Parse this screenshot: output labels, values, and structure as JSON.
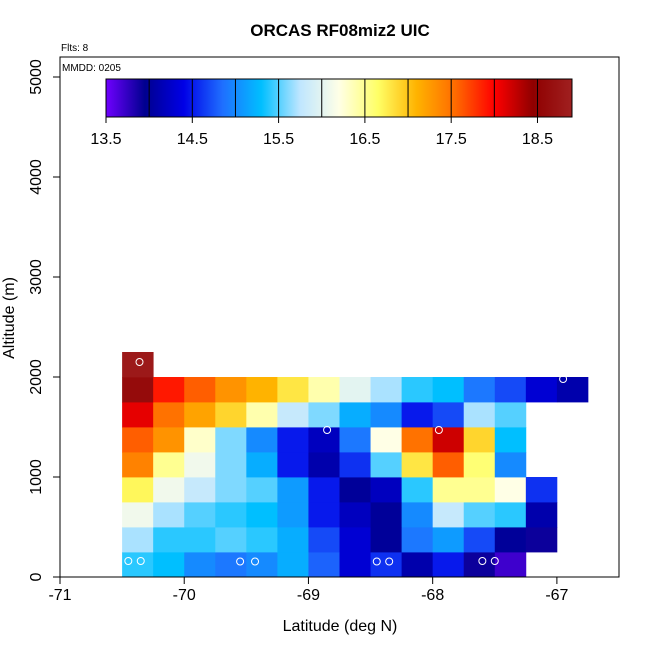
{
  "chart_data": {
    "type": "heatmap",
    "title": "ORCAS RF08miz2 UIC",
    "annotations": [
      "Flts: 8",
      "MMDD: 0205"
    ],
    "xlabel": "Latitude (deg N)",
    "ylabel": "Altitude (m)",
    "xlim": [
      -71.0,
      -66.5
    ],
    "ylim": [
      0,
      5200
    ],
    "x_ticks": [
      -71,
      -70,
      -69,
      -68,
      -67
    ],
    "x_tick_labels": [
      "-71",
      "-70",
      "-69",
      "-68",
      "-67"
    ],
    "y_ticks": [
      0,
      1000,
      2000,
      3000,
      4000,
      5000
    ],
    "y_tick_labels": [
      "0",
      "1000",
      "2000",
      "3000",
      "4000",
      "5000"
    ],
    "cell_size": {
      "dx": 0.25,
      "dz": 250
    },
    "colorbar": {
      "min": 13.5,
      "max": 18.9,
      "ticks": [
        13.5,
        14.5,
        15.5,
        16.5,
        17.5,
        18.5
      ],
      "tick_labels": [
        "13.5",
        "14.5",
        "15.5",
        "16.5",
        "17.5",
        "18.5"
      ],
      "stops": [
        "#6f00ff",
        "#00008f",
        "#0000e6",
        "#1f6fff",
        "#00bfff",
        "#bfe6ff",
        "#ffffe6",
        "#ffff66",
        "#ffb300",
        "#ff6a00",
        "#ff0000",
        "#8f0000",
        "#a02020"
      ]
    },
    "rows": [
      {
        "z0": 0,
        "x0": -70.5,
        "values": [
          15.4,
          15.3,
          15.0,
          14.9,
          15.0,
          15.2,
          14.8,
          14.3,
          14.6,
          14.1,
          14.5,
          13.9,
          13.7
        ]
      },
      {
        "z0": 250,
        "x0": -70.5,
        "values": [
          15.7,
          15.4,
          15.4,
          15.5,
          15.4,
          15.2,
          14.7,
          14.3,
          14.0,
          14.9,
          15.1,
          14.7,
          14.0,
          13.9
        ]
      },
      {
        "z0": 500,
        "x0": -70.5,
        "values": [
          16.1,
          15.7,
          15.5,
          15.4,
          15.3,
          15.1,
          14.5,
          14.2,
          14.0,
          15.0,
          15.8,
          15.5,
          15.4,
          14.1
        ]
      },
      {
        "z0": 750,
        "x0": -70.5,
        "values": [
          16.7,
          16.1,
          15.8,
          15.6,
          15.5,
          15.1,
          14.5,
          14.0,
          14.2,
          15.4,
          16.5,
          16.5,
          16.2,
          14.6
        ]
      },
      {
        "z0": 1000,
        "x0": -70.5,
        "values": [
          17.4,
          16.5,
          16.1,
          15.6,
          15.2,
          14.5,
          14.1,
          14.6,
          15.5,
          16.8,
          17.6,
          16.6,
          15.0
        ]
      },
      {
        "z0": 1250,
        "x0": -70.5,
        "values": [
          17.6,
          17.3,
          16.3,
          15.6,
          15.0,
          14.5,
          14.2,
          14.9,
          16.2,
          17.5,
          18.2,
          16.9,
          15.3
        ]
      },
      {
        "z0": 1500,
        "x0": -70.5,
        "values": [
          18.1,
          17.5,
          17.2,
          16.9,
          16.4,
          15.8,
          15.6,
          15.2,
          15.0,
          14.5,
          14.7,
          15.7,
          15.5
        ]
      },
      {
        "z0": 1750,
        "x0": -70.5,
        "values": [
          18.6,
          17.9,
          17.6,
          17.3,
          17.1,
          16.8,
          16.4,
          16.0,
          15.7,
          15.4,
          15.3,
          14.9,
          14.7,
          14.3,
          14.1
        ]
      },
      {
        "z0": 2000,
        "x0": -70.5,
        "values": [
          18.8
        ]
      }
    ],
    "markers": [
      {
        "lat": -70.45,
        "alt": 160
      },
      {
        "lat": -70.35,
        "alt": 160
      },
      {
        "lat": -69.55,
        "alt": 155
      },
      {
        "lat": -69.43,
        "alt": 155
      },
      {
        "lat": -68.45,
        "alt": 155
      },
      {
        "lat": -68.35,
        "alt": 155
      },
      {
        "lat": -67.6,
        "alt": 160
      },
      {
        "lat": -67.5,
        "alt": 160
      },
      {
        "lat": -68.85,
        "alt": 1470
      },
      {
        "lat": -67.95,
        "alt": 1470
      },
      {
        "lat": -70.36,
        "alt": 2150
      },
      {
        "lat": -66.95,
        "alt": 1980
      }
    ]
  }
}
